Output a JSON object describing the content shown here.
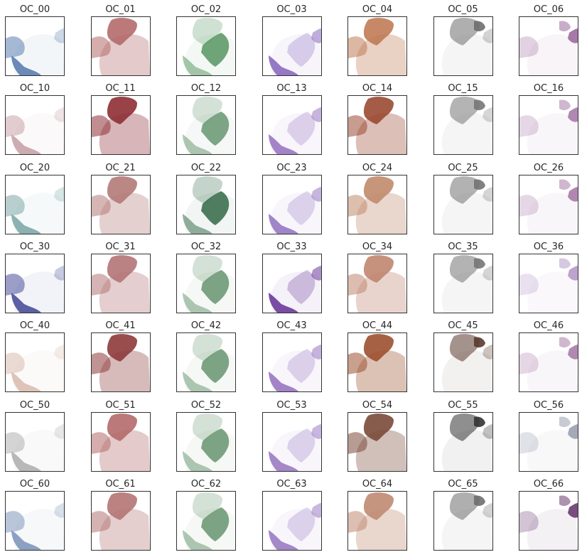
{
  "chart_data": {
    "type": "heatmap",
    "grid": {
      "rows": 7,
      "cols": 7
    },
    "panels": [
      {
        "title": "OC_00",
        "color": "#5b7fb0"
      },
      {
        "title": "OC_01",
        "color": "#b46a6a"
      },
      {
        "title": "OC_02",
        "color": "#5f9a6a"
      },
      {
        "title": "OC_03",
        "color": "#8a6bbf"
      },
      {
        "title": "OC_04",
        "color": "#c07b55"
      },
      {
        "title": "OC_05",
        "color": "#6e6e6e"
      },
      {
        "title": "OC_06",
        "color": "#9b6a9f"
      },
      {
        "title": "OC_10",
        "color": "#c8a3a8"
      },
      {
        "title": "OC_11",
        "color": "#8e2f35"
      },
      {
        "title": "OC_12",
        "color": "#6f9b79"
      },
      {
        "title": "OC_13",
        "color": "#9a78c2"
      },
      {
        "title": "OC_14",
        "color": "#9a4a32"
      },
      {
        "title": "OC_15",
        "color": "#777777"
      },
      {
        "title": "OC_16",
        "color": "#a87ba8"
      },
      {
        "title": "OC_20",
        "color": "#7fa8a8"
      },
      {
        "title": "OC_21",
        "color": "#b47a78"
      },
      {
        "title": "OC_22",
        "color": "#3d7050"
      },
      {
        "title": "OC_23",
        "color": "#9779c3"
      },
      {
        "title": "OC_24",
        "color": "#c18a6c"
      },
      {
        "title": "OC_25",
        "color": "#737373"
      },
      {
        "title": "OC_26",
        "color": "#a97aa8"
      },
      {
        "title": "OC_30",
        "color": "#4a4f9a"
      },
      {
        "title": "OC_31",
        "color": "#b47476"
      },
      {
        "title": "OC_32",
        "color": "#6f9a78"
      },
      {
        "title": "OC_33",
        "color": "#6b3a9c"
      },
      {
        "title": "OC_34",
        "color": "#c08670"
      },
      {
        "title": "OC_35",
        "color": "#757575"
      },
      {
        "title": "OC_36",
        "color": "#b59ac9"
      },
      {
        "title": "OC_40",
        "color": "#d9bcb0"
      },
      {
        "title": "OC_41",
        "color": "#8e3a3a"
      },
      {
        "title": "OC_42",
        "color": "#6f9a78"
      },
      {
        "title": "OC_43",
        "color": "#9877c2"
      },
      {
        "title": "OC_44",
        "color": "#9c5030"
      },
      {
        "title": "OC_45",
        "color": "#5a3a30"
      },
      {
        "title": "OC_46",
        "color": "#a87ba8"
      },
      {
        "title": "OC_50",
        "color": "#b0b0b0"
      },
      {
        "title": "OC_51",
        "color": "#b46a6a"
      },
      {
        "title": "OC_52",
        "color": "#6f9a78"
      },
      {
        "title": "OC_53",
        "color": "#9a7cc2"
      },
      {
        "title": "OC_54",
        "color": "#7a4a38"
      },
      {
        "title": "OC_55",
        "color": "#333333"
      },
      {
        "title": "OC_56",
        "color": "#9ba0b0"
      },
      {
        "title": "OC_60",
        "color": "#7f97bb"
      },
      {
        "title": "OC_61",
        "color": "#b47474"
      },
      {
        "title": "OC_62",
        "color": "#6f9a78"
      },
      {
        "title": "OC_63",
        "color": "#9a7cc2"
      },
      {
        "title": "OC_64",
        "color": "#c08a72"
      },
      {
        "title": "OC_65",
        "color": "#6e6e6e"
      },
      {
        "title": "OC_66",
        "color": "#6a3a70"
      }
    ]
  }
}
